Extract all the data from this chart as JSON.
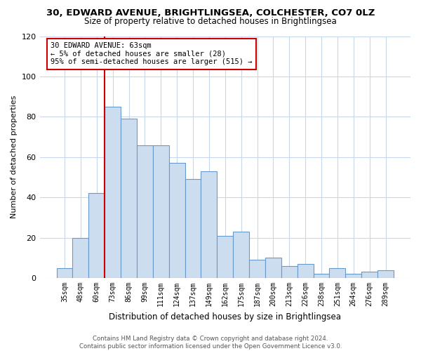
{
  "title": "30, EDWARD AVENUE, BRIGHTLINGSEA, COLCHESTER, CO7 0LZ",
  "subtitle": "Size of property relative to detached houses in Brightlingsea",
  "xlabel": "Distribution of detached houses by size in Brightlingsea",
  "ylabel": "Number of detached properties",
  "bar_color": "#ccddf0",
  "bar_edge_color": "#6699cc",
  "categories": [
    "35sqm",
    "48sqm",
    "60sqm",
    "73sqm",
    "86sqm",
    "99sqm",
    "111sqm",
    "124sqm",
    "137sqm",
    "149sqm",
    "162sqm",
    "175sqm",
    "187sqm",
    "200sqm",
    "213sqm",
    "226sqm",
    "238sqm",
    "251sqm",
    "264sqm",
    "276sqm",
    "289sqm"
  ],
  "values": [
    5,
    20,
    42,
    85,
    79,
    66,
    66,
    57,
    49,
    53,
    21,
    23,
    9,
    10,
    6,
    7,
    2,
    5,
    2,
    3,
    4
  ],
  "ylim": [
    0,
    120
  ],
  "yticks": [
    0,
    20,
    40,
    60,
    80,
    100,
    120
  ],
  "vline_color": "#cc0000",
  "vline_x_index": 2.5,
  "annotation_line1": "30 EDWARD AVENUE: 63sqm",
  "annotation_line2": "← 5% of detached houses are smaller (28)",
  "annotation_line3": "95% of semi-detached houses are larger (515) →",
  "footer_text": "Contains HM Land Registry data © Crown copyright and database right 2024.\nContains public sector information licensed under the Open Government Licence v3.0.",
  "background_color": "#ffffff",
  "grid_color": "#c8d8ec"
}
